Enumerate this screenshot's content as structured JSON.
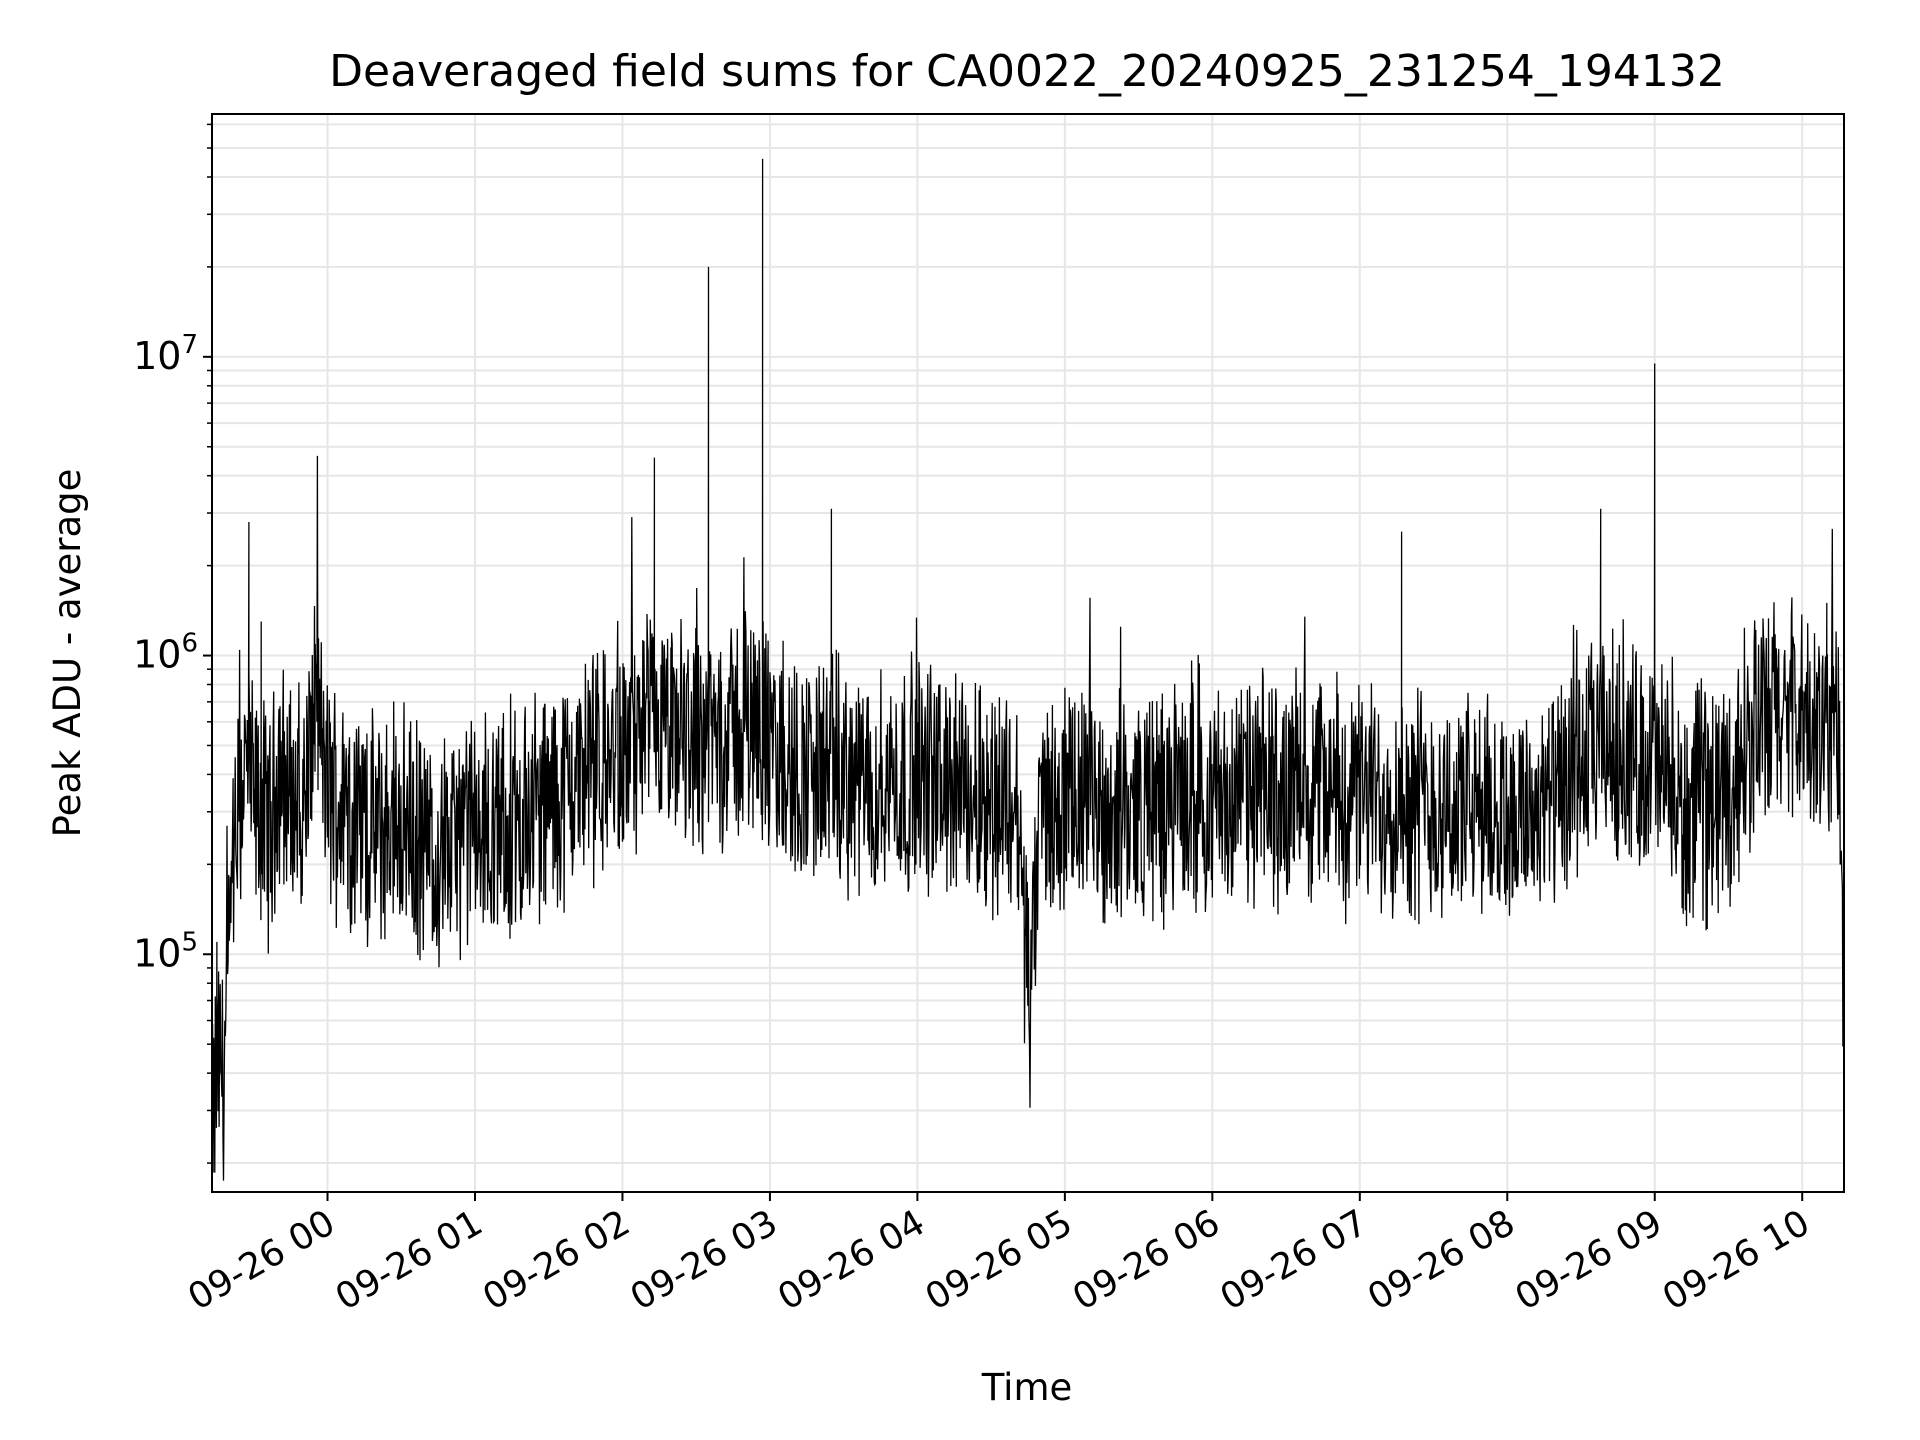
{
  "chart_data": {
    "type": "line",
    "title": "Deaveraged field sums for CA0022_20240925_231254_194132",
    "xlabel": "Time",
    "ylabel": "Peak ADU - average",
    "yscale": "log",
    "ylim": [
      16000,
      65000000
    ],
    "xlim": [
      "09-25 23:13",
      "09-26 10:17"
    ],
    "grid": true,
    "line_color": "#000000",
    "grid_color": "#e6e6e6",
    "x_ticks": [
      "09-26 00",
      "09-26 01",
      "09-26 02",
      "09-26 03",
      "09-26 04",
      "09-26 05",
      "09-26 06",
      "09-26 07",
      "09-26 08",
      "09-26 09",
      "09-26 10"
    ],
    "y_ticks": [
      {
        "value": 100000,
        "base": "10",
        "exp": "5"
      },
      {
        "value": 1000000,
        "base": "10",
        "exp": "6"
      },
      {
        "value": 10000000,
        "base": "10",
        "exp": "7"
      }
    ],
    "series": [
      {
        "x": [
          "09-25 23:13",
          "09-25 23:15",
          "09-25 23:18",
          "09-25 23:22",
          "09-25 23:26",
          "09-25 23:28",
          "09-25 23:30",
          "09-25 23:33",
          "09-25 23:37",
          "09-25 23:40",
          "09-25 23:45",
          "09-25 23:50",
          "09-25 23:55",
          "09-26 00:00",
          "09-26 00:10",
          "09-26 00:20",
          "09-26 00:30",
          "09-26 00:40",
          "09-26 00:50",
          "09-26 01:00",
          "09-26 01:10",
          "09-26 01:20",
          "09-26 01:30",
          "09-26 01:40",
          "09-26 01:50",
          "09-26 02:00",
          "09-26 02:10",
          "09-26 02:13",
          "09-26 02:20",
          "09-26 02:30",
          "09-26 02:35",
          "09-26 02:40",
          "09-26 02:50",
          "09-26 02:57",
          "09-26 03:00",
          "09-26 03:10",
          "09-26 03:20",
          "09-26 03:25",
          "09-26 03:30",
          "09-26 03:40",
          "09-26 03:50",
          "09-26 04:00",
          "09-26 04:10",
          "09-26 04:20",
          "09-26 04:30",
          "09-26 04:40",
          "09-26 04:46",
          "09-26 04:50",
          "09-26 05:00",
          "09-26 05:10",
          "09-26 05:20",
          "09-26 05:30",
          "09-26 05:40",
          "09-26 05:50",
          "09-26 06:00",
          "09-26 06:10",
          "09-26 06:20",
          "09-26 06:30",
          "09-26 06:40",
          "09-26 06:50",
          "09-26 07:00",
          "09-26 07:10",
          "09-26 07:17",
          "09-26 07:20",
          "09-26 07:30",
          "09-26 07:40",
          "09-26 07:50",
          "09-26 08:00",
          "09-26 08:10",
          "09-26 08:20",
          "09-26 08:30",
          "09-26 08:38",
          "09-26 08:40",
          "09-26 08:50",
          "09-26 09:00",
          "09-26 09:10",
          "09-26 09:20",
          "09-26 09:30",
          "09-26 09:40",
          "09-26 09:50",
          "09-26 10:00",
          "09-26 10:05",
          "09-26 10:10",
          "09-26 10:15",
          "09-26 10:17"
        ],
        "y": [
          23000,
          110000,
          42000,
          200000,
          420000,
          2800000,
          300000,
          1300000,
          250000,
          450000,
          320000,
          300000,
          700000,
          350000,
          300000,
          250000,
          280000,
          220000,
          230000,
          260000,
          250000,
          280000,
          320000,
          380000,
          420000,
          450000,
          550000,
          4600000,
          500000,
          550000,
          20000000,
          520000,
          600000,
          46000000,
          450000,
          400000,
          420000,
          3100000,
          380000,
          350000,
          380000,
          400000,
          380000,
          350000,
          340000,
          330000,
          68000,
          320000,
          300000,
          320000,
          300000,
          310000,
          320000,
          330000,
          330000,
          340000,
          350000,
          360000,
          380000,
          350000,
          330000,
          340000,
          2600000,
          330000,
          320000,
          300000,
          300000,
          290000,
          300000,
          320000,
          400000,
          3100000,
          500000,
          450000,
          9500000,
          280000,
          320000,
          350000,
          550000,
          650000,
          600000,
          500000,
          1500000,
          600000,
          50000
        ],
        "note_points_are_envelope_estimates": ""
      }
    ]
  }
}
